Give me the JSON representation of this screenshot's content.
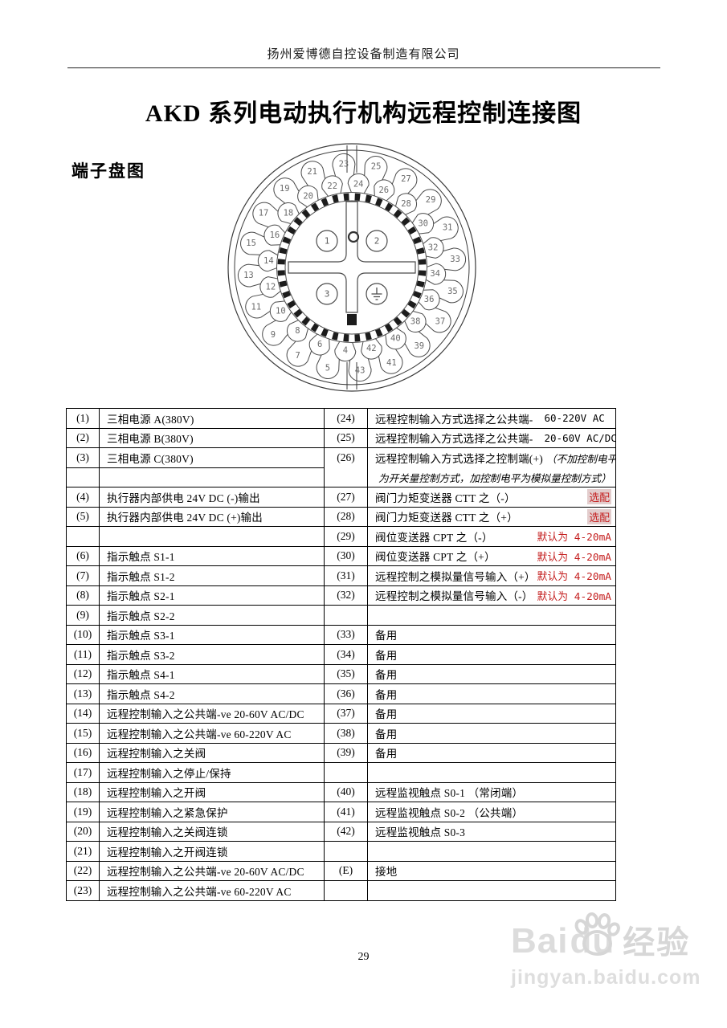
{
  "header": {
    "company": "扬州爱博德自控设备制造有限公司"
  },
  "title": "AKD 系列电动执行机构远程控制连接图",
  "section_label": "端子盘图",
  "footer": {
    "page_number": "29"
  },
  "watermark": {
    "brand_part1": "Bai",
    "brand_part2": "du",
    "brand_suffix": "经验",
    "url": "jingyan.baidu.com"
  },
  "colors": {
    "accent_red": "#c41e1e",
    "note_highlight_bg": "#e3cdcd",
    "watermark_gray": "#dbdbdb"
  },
  "diagram": {
    "outer_terminal_numbers": [
      4,
      5,
      6,
      7,
      8,
      9,
      10,
      11,
      12,
      13,
      14,
      15,
      16,
      17,
      18,
      19,
      20,
      21,
      22,
      23,
      24,
      25,
      26,
      27,
      28,
      29,
      30,
      31,
      32,
      33,
      34,
      35,
      36,
      37,
      38,
      39,
      40,
      41,
      42,
      43
    ],
    "inner_labels": [
      "1",
      "2",
      "3"
    ],
    "has_ground_terminal": true
  },
  "table": {
    "rows": [
      {
        "ln": "(1)",
        "lt": "三相电源 A(380V)",
        "rn": "(24)",
        "rt": "远程控制输入方式选择之公共端-",
        "rv": "60-220V AC"
      },
      {
        "ln": "(2)",
        "lt": "三相电源 B(380V)",
        "rn": "(25)",
        "rt": "远程控制输入方式选择之公共端-",
        "rv": "20-60V AC/DC"
      },
      {
        "ln": "(3)",
        "lt": "三相电源 C(380V)",
        "rn": "(26)",
        "rt": "远程控制输入方式选择之控制端(+)",
        "rti": "（不加控制电平"
      },
      {
        "ln": "",
        "lt": "",
        "rn": "",
        "rt": "",
        "rti": "为开关量控制方式，加控制电平为模拟量控制方式）",
        "cont": true
      },
      {
        "ln": "(4)",
        "lt": "执行器内部供电 24V DC (-)输出",
        "rn": "(27)",
        "rt": "阀门力矩变送器 CTT 之（-）",
        "note": "选配",
        "hl": true
      },
      {
        "ln": "(5)",
        "lt": "执行器内部供电 24V DC (+)输出",
        "rn": "(28)",
        "rt": "阀门力矩变送器 CTT 之（+）",
        "note": "选配",
        "hl": true
      },
      {
        "ln": "",
        "lt": "",
        "rn": "(29)",
        "rt": "阀位变送器 CPT 之（-）",
        "note": "默认为 4-20mA"
      },
      {
        "ln": "(6)",
        "lt": "指示触点 S1-1",
        "rn": "(30)",
        "rt": "阀位变送器 CPT 之（+）",
        "note": "默认为 4-20mA"
      },
      {
        "ln": "(7)",
        "lt": "指示触点 S1-2",
        "rn": "(31)",
        "rt": "远程控制之模拟量信号输入（+）",
        "note": "默认为 4-20mA"
      },
      {
        "ln": "(8)",
        "lt": "指示触点 S2-1",
        "rn": "(32)",
        "rt": "远程控制之模拟量信号输入（-）",
        "note": "默认为 4-20mA"
      },
      {
        "ln": "(9)",
        "lt": "指示触点 S2-2",
        "rn": "",
        "rt": ""
      },
      {
        "ln": "(10)",
        "lt": "指示触点 S3-1",
        "rn": "(33)",
        "rt": "备用"
      },
      {
        "ln": "(11)",
        "lt": "指示触点 S3-2",
        "rn": "(34)",
        "rt": "备用"
      },
      {
        "ln": "(12)",
        "lt": "指示触点 S4-1",
        "rn": "(35)",
        "rt": "备用"
      },
      {
        "ln": "(13)",
        "lt": "指示触点 S4-2",
        "rn": "(36)",
        "rt": "备用"
      },
      {
        "ln": "(14)",
        "lt": "远程控制输入之公共端-ve 20-60V AC/DC",
        "rn": "(37)",
        "rt": "备用"
      },
      {
        "ln": "(15)",
        "lt": "远程控制输入之公共端-ve 60-220V AC",
        "rn": "(38)",
        "rt": "备用"
      },
      {
        "ln": "(16)",
        "lt": "远程控制输入之关阀",
        "rn": "(39)",
        "rt": "备用"
      },
      {
        "ln": "(17)",
        "lt": "远程控制输入之停止/保持",
        "rn": "",
        "rt": ""
      },
      {
        "ln": "(18)",
        "lt": "远程控制输入之开阀",
        "rn": "(40)",
        "rt": "远程监视触点 S0-1 （常闭端）"
      },
      {
        "ln": "(19)",
        "lt": "远程控制输入之紧急保护",
        "rn": "(41)",
        "rt": "远程监视触点 S0-2  （公共端）"
      },
      {
        "ln": "(20)",
        "lt": "远程控制输入之关阀连锁",
        "rn": "(42)",
        "rt": "远程监视触点 S0-3"
      },
      {
        "ln": "(21)",
        "lt": "远程控制输入之开阀连锁",
        "rn": "",
        "rt": ""
      },
      {
        "ln": "(22)",
        "lt": "远程控制输入之公共端-ve 20-60V AC/DC",
        "rn": "(E)",
        "rt": "接地"
      },
      {
        "ln": "(23)",
        "lt": "远程控制输入之公共端-ve 60-220V AC",
        "rn": "",
        "rt": ""
      }
    ]
  }
}
